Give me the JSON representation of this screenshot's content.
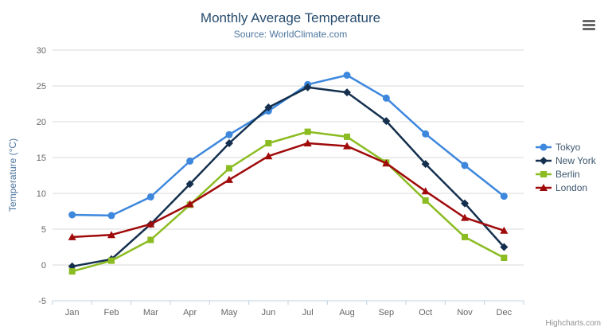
{
  "chart_data": {
    "type": "line",
    "title": "Monthly Average Temperature",
    "subtitle": "Source: WorldClimate.com",
    "xlabel": "",
    "ylabel": "Temperature (°C)",
    "ylim": [
      -5,
      30
    ],
    "yticks": [
      30,
      25,
      20,
      15,
      10,
      5,
      0,
      -5
    ],
    "grid": true,
    "legend_position": "right",
    "categories": [
      "Jan",
      "Feb",
      "Mar",
      "Apr",
      "May",
      "Jun",
      "Jul",
      "Aug",
      "Sep",
      "Oct",
      "Nov",
      "Dec"
    ],
    "series": [
      {
        "name": "Tokyo",
        "color": "#3d87dd",
        "marker": "circle",
        "values": [
          7.0,
          6.9,
          9.5,
          14.5,
          18.2,
          21.5,
          25.2,
          26.5,
          23.3,
          18.3,
          13.9,
          9.6
        ]
      },
      {
        "name": "New York",
        "color": "#14304e",
        "marker": "diamond",
        "values": [
          -0.2,
          0.8,
          5.7,
          11.3,
          17.0,
          22.0,
          24.8,
          24.1,
          20.1,
          14.1,
          8.6,
          2.5
        ]
      },
      {
        "name": "Berlin",
        "color": "#8bbc21",
        "marker": "square",
        "values": [
          -0.9,
          0.6,
          3.5,
          8.4,
          13.5,
          17.0,
          18.6,
          17.9,
          14.3,
          9.0,
          3.9,
          1.0
        ]
      },
      {
        "name": "London",
        "color": "#a00a0a",
        "marker": "triangle",
        "values": [
          3.9,
          4.2,
          5.7,
          8.5,
          11.9,
          15.2,
          17.0,
          16.6,
          14.2,
          10.3,
          6.6,
          4.8
        ]
      }
    ],
    "colors": {
      "grid_line": "#d8d8d8",
      "axis_line": "#c0d0e0",
      "tick_label": "#666666",
      "title": "#274b6d",
      "subtitle": "#4d759e",
      "axis_title": "#4d759e",
      "legend_text": "#3E576F"
    }
  },
  "credits": {
    "label": "Highcharts.com"
  },
  "context_menu": {
    "tooltip": "Chart context menu"
  }
}
